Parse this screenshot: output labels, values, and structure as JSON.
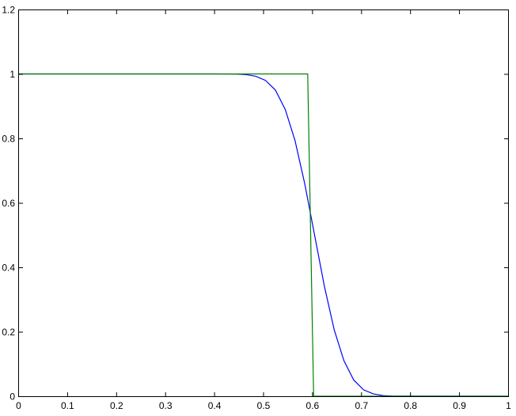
{
  "chart_data": {
    "type": "line",
    "title": "",
    "xlabel": "",
    "ylabel": "",
    "xlim": [
      0,
      1
    ],
    "ylim": [
      0,
      1.2
    ],
    "xticks": [
      "0",
      "0.1",
      "0.2",
      "0.3",
      "0.4",
      "0.5",
      "0.6",
      "0.7",
      "0.8",
      "0.9",
      "1"
    ],
    "yticks": [
      "0",
      "0.2",
      "0.4",
      "0.6",
      "0.8",
      "1",
      "1.2"
    ],
    "grid": false,
    "series": [
      {
        "color": "#0000ff",
        "x": [
          0,
          0.4,
          0.445,
          0.465,
          0.485,
          0.505,
          0.525,
          0.545,
          0.565,
          0.585,
          0.605,
          0.625,
          0.645,
          0.665,
          0.685,
          0.705,
          0.725,
          0.745,
          0.765,
          1
        ],
        "y": [
          1,
          1,
          0.9995,
          0.998,
          0.993,
          0.98,
          0.95,
          0.89,
          0.794,
          0.659,
          0.5,
          0.341,
          0.206,
          0.11,
          0.05,
          0.02,
          0.007,
          0.002,
          0.0005,
          0
        ]
      },
      {
        "color": "#008000",
        "x": [
          0,
          0.591,
          0.603,
          1
        ],
        "y": [
          1,
          1,
          0,
          0
        ]
      }
    ]
  }
}
